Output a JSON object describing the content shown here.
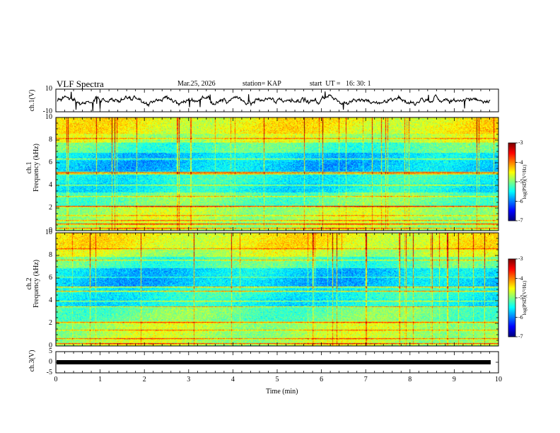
{
  "header": {
    "title": "VLF Spectra",
    "date": "Mar.25, 2026",
    "station": "station= KAP",
    "start": "start  UT =   16: 30: 1"
  },
  "chart_data": [
    {
      "type": "line",
      "name": "ch1-waveform",
      "ylabel": "ch.1(V)",
      "ylim": [
        -10,
        10
      ],
      "yticks": [
        "10",
        "-10"
      ],
      "xlim": [
        0,
        10
      ],
      "color": "#000000"
    },
    {
      "type": "heatmap",
      "name": "ch1-spectrogram",
      "ylabel_line1": "ch.1",
      "ylabel_line2": "Frequency  (kHz)",
      "ylim": [
        0,
        10
      ],
      "yticks": [
        "0",
        "2",
        "4",
        "6",
        "8",
        "10"
      ],
      "xlim": [
        0,
        10
      ],
      "colorbar": {
        "ticks": [
          "-3",
          "-4",
          "-5",
          "-6",
          "-7"
        ],
        "label": "log(PSD)(V²/Hz)",
        "range": [
          -7,
          -3
        ]
      }
    },
    {
      "type": "heatmap",
      "name": "ch2-spectrogram",
      "ylabel_line1": "ch.2",
      "ylabel_line2": "Frequency  (kHz)",
      "ylim": [
        0,
        10
      ],
      "yticks": [
        "0",
        "2",
        "4",
        "6",
        "8",
        "10"
      ],
      "xlim": [
        0,
        10
      ],
      "colorbar": {
        "ticks": [
          "-3",
          "-4",
          "-5",
          "-6",
          "-7"
        ],
        "label": "log(PSD)(V²/Hz)",
        "range": [
          -7,
          -3
        ]
      }
    },
    {
      "type": "line",
      "name": "ch3-waveform",
      "ylabel": "ch.3(V)",
      "ylim": [
        -5,
        5
      ],
      "yticks": [
        "5",
        "0",
        "-5"
      ],
      "xlim": [
        0,
        10
      ],
      "value": 0,
      "color": "#000000"
    }
  ],
  "xaxis": {
    "label": "Time  (min)",
    "ticks": [
      "0",
      "1",
      "2",
      "3",
      "4",
      "5",
      "6",
      "7",
      "8",
      "9",
      "10"
    ]
  }
}
